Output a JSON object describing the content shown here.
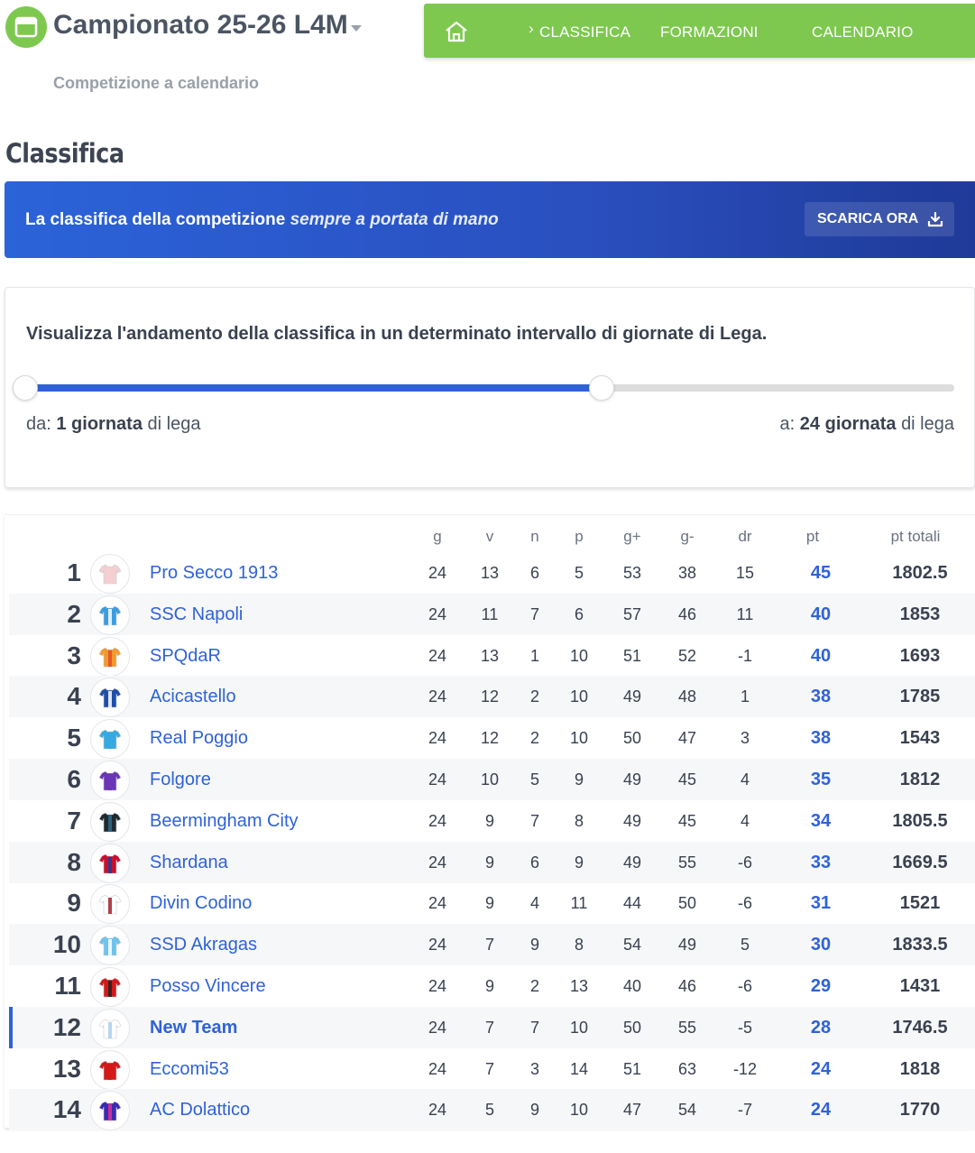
{
  "header": {
    "title": "Campionato 25-26 L4M",
    "subtitle": "Competizione a calendario"
  },
  "nav": {
    "items": [
      {
        "label": "CLASSIFICA",
        "active": true
      },
      {
        "label": "FORMAZIONI",
        "active": false
      },
      {
        "label": "CALENDARIO",
        "active": false
      }
    ]
  },
  "page": {
    "title": "Classifica"
  },
  "banner": {
    "text": "La classifica della competizione",
    "emph": "sempre a portata di mano",
    "button": "SCARICA ORA"
  },
  "range": {
    "title": "Visualizza l'andamento della classifica in un determinato intervallo di giornate di Lega.",
    "from_prefix": "da:",
    "from_value": "1 giornata",
    "from_suffix": "di lega",
    "to_prefix": "a:",
    "to_value": "24 giornata",
    "to_suffix": "di lega",
    "fill_fraction": 0.62
  },
  "table": {
    "headers": [
      "g",
      "v",
      "n",
      "p",
      "g+",
      "g-",
      "dr",
      "pt",
      "pt totali"
    ],
    "rows": [
      {
        "pos": "1",
        "team": "Pro Secco 1913",
        "g": "24",
        "v": "13",
        "n": "6",
        "p": "5",
        "gf": "53",
        "gs": "38",
        "dr": "15",
        "pt": "45",
        "tot": "1802.5",
        "color": "#f4cfd2",
        "stripe": "#f4cfd2"
      },
      {
        "pos": "2",
        "team": "SSC Napoli",
        "g": "24",
        "v": "11",
        "n": "7",
        "p": "6",
        "gf": "57",
        "gs": "46",
        "dr": "11",
        "pt": "40",
        "tot": "1853",
        "color": "#3b9de0",
        "stripe": "#ffffff"
      },
      {
        "pos": "3",
        "team": "SPQdaR",
        "g": "24",
        "v": "13",
        "n": "1",
        "p": "10",
        "gf": "51",
        "gs": "52",
        "dr": "-1",
        "pt": "40",
        "tot": "1693",
        "color": "#f39a2b",
        "stripe": "#e04a2a"
      },
      {
        "pos": "4",
        "team": "Acicastello",
        "g": "24",
        "v": "12",
        "n": "2",
        "p": "10",
        "gf": "49",
        "gs": "48",
        "dr": "1",
        "pt": "38",
        "tot": "1785",
        "color": "#1d4fa8",
        "stripe": "#ffffff"
      },
      {
        "pos": "5",
        "team": "Real Poggio",
        "g": "24",
        "v": "12",
        "n": "2",
        "p": "10",
        "gf": "50",
        "gs": "47",
        "dr": "3",
        "pt": "38",
        "tot": "1543",
        "color": "#36a9e1",
        "stripe": "#36a9e1"
      },
      {
        "pos": "6",
        "team": "Folgore",
        "g": "24",
        "v": "10",
        "n": "5",
        "p": "9",
        "gf": "49",
        "gs": "45",
        "dr": "4",
        "pt": "35",
        "tot": "1812",
        "color": "#6c35b5",
        "stripe": "#6c35b5"
      },
      {
        "pos": "7",
        "team": "Beermingham City",
        "g": "24",
        "v": "9",
        "n": "7",
        "p": "8",
        "gf": "49",
        "gs": "45",
        "dr": "4",
        "pt": "34",
        "tot": "1805.5",
        "color": "#1f2a30",
        "stripe": "#2f6b8a"
      },
      {
        "pos": "8",
        "team": "Shardana",
        "g": "24",
        "v": "9",
        "n": "6",
        "p": "9",
        "gf": "49",
        "gs": "55",
        "dr": "-6",
        "pt": "33",
        "tot": "1669.5",
        "color": "#c8102e",
        "stripe": "#1d3d9a"
      },
      {
        "pos": "9",
        "team": "Divin Codino",
        "g": "24",
        "v": "9",
        "n": "4",
        "p": "11",
        "gf": "44",
        "gs": "50",
        "dr": "-6",
        "pt": "31",
        "tot": "1521",
        "color": "#ffffff",
        "stripe": "#a0202a"
      },
      {
        "pos": "10",
        "team": "SSD Akragas",
        "g": "24",
        "v": "7",
        "n": "9",
        "p": "8",
        "gf": "54",
        "gs": "49",
        "dr": "5",
        "pt": "30",
        "tot": "1833.5",
        "color": "#6cc3ee",
        "stripe": "#ffffff"
      },
      {
        "pos": "11",
        "team": "Posso Vincere",
        "g": "24",
        "v": "9",
        "n": "2",
        "p": "13",
        "gf": "40",
        "gs": "46",
        "dr": "-6",
        "pt": "29",
        "tot": "1431",
        "color": "#d31919",
        "stripe": "#222222"
      },
      {
        "pos": "12",
        "team": "New Team",
        "g": "24",
        "v": "7",
        "n": "7",
        "p": "10",
        "gf": "50",
        "gs": "55",
        "dr": "-5",
        "pt": "28",
        "tot": "1746.5",
        "color": "#ffffff",
        "stripe": "#a9cfee",
        "mine": true
      },
      {
        "pos": "13",
        "team": "Eccomi53",
        "g": "24",
        "v": "7",
        "n": "3",
        "p": "14",
        "gf": "51",
        "gs": "63",
        "dr": "-12",
        "pt": "24",
        "tot": "1818",
        "color": "#d31919",
        "stripe": "#d31919"
      },
      {
        "pos": "14",
        "team": "AC Dolattico",
        "g": "24",
        "v": "5",
        "n": "9",
        "p": "10",
        "gf": "47",
        "gs": "54",
        "dr": "-7",
        "pt": "24",
        "tot": "1770",
        "color": "#3a2bb0",
        "stripe": "#e0309a"
      }
    ]
  },
  "icons": {
    "logo": "calendar-icon",
    "home": "home-icon",
    "download": "download-icon",
    "dropdown": "chevron-down-icon",
    "badge": "jersey-icon"
  },
  "colors": {
    "green": "#7ec84f",
    "blue": "#2f62d9",
    "banner_dark": "#1f3a97"
  }
}
